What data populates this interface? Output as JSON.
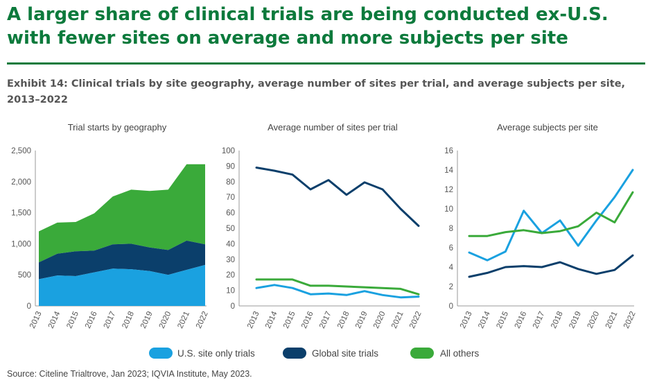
{
  "headline": "A larger share of clinical trials are being conducted ex-U.S. with fewer sites on average and more subjects per site",
  "exhibit": "Exhibit 14: Clinical trials by site geography, average number of sites per trial, and average subjects per site, 2013–2022",
  "source": "Source: Citeline Trialtrove, Jan 2023; IQVIA Institute, May 2023.",
  "colors": {
    "us": "#1aa1e0",
    "global": "#0b3f6b",
    "others": "#3aaa3a",
    "headline": "#0c7a3c",
    "axis": "#999999"
  },
  "legend": [
    {
      "label": "U.S. site only trials",
      "color": "#1aa1e0"
    },
    {
      "label": "Global site trials",
      "color": "#0b3f6b"
    },
    {
      "label": "All others",
      "color": "#3aaa3a"
    }
  ],
  "chart_data": [
    {
      "type": "area",
      "stacked": true,
      "title": "Trial starts by geography",
      "x": [
        "2013",
        "2014",
        "2015",
        "2016",
        "2017",
        "2018",
        "2019",
        "2020",
        "2021",
        "2022"
      ],
      "ylim": [
        0,
        2500
      ],
      "yticks": [
        "0",
        "500",
        "1,000",
        "1,500",
        "2,000",
        "2,500"
      ],
      "ytick_values": [
        0,
        500,
        1000,
        1500,
        2000,
        2500
      ],
      "series": [
        {
          "name": "U.S. site only trials",
          "values": [
            430,
            490,
            480,
            540,
            600,
            590,
            560,
            500,
            580,
            660
          ]
        },
        {
          "name": "Global site trials",
          "values": [
            270,
            350,
            400,
            350,
            390,
            410,
            380,
            400,
            470,
            330
          ]
        },
        {
          "name": "All others",
          "values": [
            500,
            500,
            470,
            600,
            770,
            870,
            910,
            970,
            1230,
            1290
          ]
        }
      ]
    },
    {
      "type": "line",
      "title": "Average number of sites per trial",
      "x": [
        "2013",
        "2014",
        "2015",
        "2016",
        "2017",
        "2018",
        "2019",
        "2020",
        "2021",
        "2022"
      ],
      "ylim": [
        0,
        100
      ],
      "yticks": [
        "0",
        "10",
        "20",
        "30",
        "40",
        "50",
        "60",
        "70",
        "80",
        "90",
        "100"
      ],
      "ytick_values": [
        0,
        10,
        20,
        30,
        40,
        50,
        60,
        70,
        80,
        90,
        100
      ],
      "series": [
        {
          "name": "U.S. site only trials",
          "values": [
            11.5,
            13.5,
            11.5,
            7.5,
            8,
            7,
            9.5,
            7,
            5.5,
            6
          ]
        },
        {
          "name": "Global site trials",
          "values": [
            89,
            87,
            84.5,
            75,
            81,
            71.5,
            79.5,
            75,
            62.5,
            51.5
          ]
        },
        {
          "name": "All others",
          "values": [
            17,
            17,
            17,
            13,
            13,
            12.5,
            12,
            11.5,
            11,
            7.5
          ]
        }
      ]
    },
    {
      "type": "line",
      "title": "Average subjects per site",
      "x": [
        "2013",
        "2014",
        "2015",
        "2016",
        "2017",
        "2018",
        "2019",
        "2020",
        "2021",
        "2022"
      ],
      "ylim": [
        0,
        16
      ],
      "yticks": [
        "0",
        "2",
        "4",
        "6",
        "8",
        "10",
        "12",
        "14",
        "16"
      ],
      "ytick_values": [
        0,
        2,
        4,
        6,
        8,
        10,
        12,
        14,
        16
      ],
      "series": [
        {
          "name": "U.S. site only trials",
          "values": [
            5.5,
            4.7,
            5.6,
            9.8,
            7.5,
            8.8,
            6.2,
            8.8,
            11.2,
            14
          ]
        },
        {
          "name": "Global site trials",
          "values": [
            3,
            3.4,
            4,
            4.1,
            4,
            4.5,
            3.8,
            3.3,
            3.7,
            5.2
          ]
        },
        {
          "name": "All others",
          "values": [
            7.2,
            7.2,
            7.6,
            7.8,
            7.5,
            7.7,
            8.2,
            9.6,
            8.6,
            11.7
          ]
        }
      ]
    }
  ]
}
